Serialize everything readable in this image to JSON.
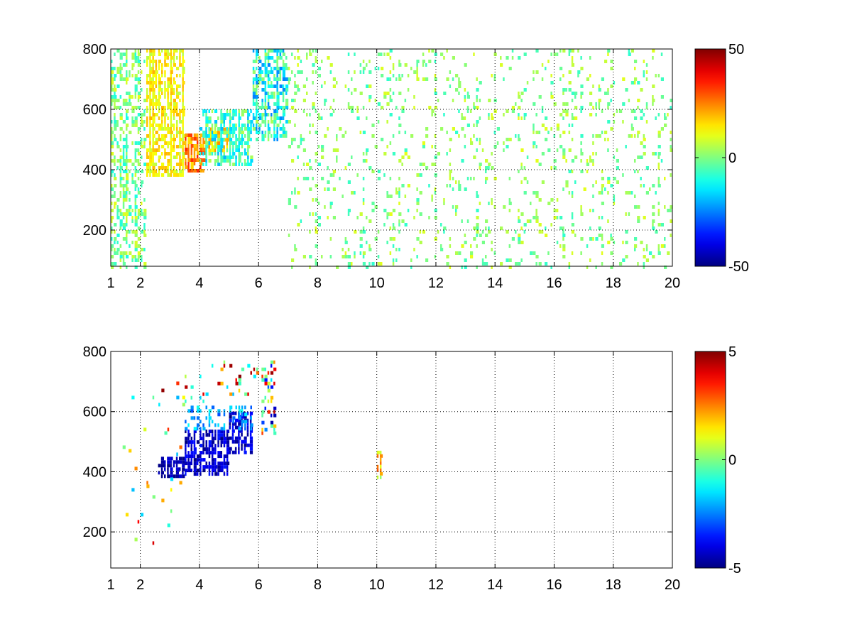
{
  "chart_data": [
    {
      "type": "heatmap",
      "title": "",
      "xlabel": "",
      "ylabel": "",
      "xlim": [
        1,
        20
      ],
      "ylim": [
        80,
        800
      ],
      "x_ticks": [
        1,
        2,
        4,
        6,
        8,
        10,
        12,
        14,
        16,
        18,
        20
      ],
      "y_ticks": [
        200,
        400,
        600,
        800
      ],
      "grid": "dotted",
      "colormap": "jet",
      "colorbar": {
        "min": -50,
        "max": 50,
        "tick_labels": [
          "50",
          "0",
          "-50"
        ]
      },
      "regions": [
        {
          "x": [
            1,
            2.2
          ],
          "y": [
            80,
            800
          ],
          "value_range": [
            -10,
            10
          ],
          "density": 0.35,
          "note": "sparse speckle"
        },
        {
          "x": [
            2.2,
            3.5
          ],
          "y": [
            380,
            800
          ],
          "value_range": [
            5,
            20
          ],
          "density": 0.7
        },
        {
          "x": [
            3.5,
            4.2
          ],
          "y": [
            400,
            520
          ],
          "value_range": [
            15,
            35
          ],
          "density": 0.8
        },
        {
          "x": [
            4.2,
            5.0
          ],
          "y": [
            460,
            540
          ],
          "value_range": [
            10,
            28
          ],
          "density": 0.7
        },
        {
          "x": [
            4.0,
            5.8
          ],
          "y": [
            420,
            600
          ],
          "value_range": [
            -20,
            5
          ],
          "density": 0.6
        },
        {
          "x": [
            5.8,
            7.0
          ],
          "y": [
            500,
            800
          ],
          "value_range": [
            -25,
            5
          ],
          "density": 0.5
        },
        {
          "x": [
            7.0,
            20
          ],
          "y": [
            80,
            800
          ],
          "value_range": [
            -8,
            10
          ],
          "density": 0.12,
          "note": "scattered columns"
        }
      ]
    },
    {
      "type": "heatmap",
      "title": "",
      "xlabel": "",
      "ylabel": "",
      "xlim": [
        1,
        20
      ],
      "ylim": [
        80,
        800
      ],
      "x_ticks": [
        1,
        2,
        4,
        6,
        8,
        10,
        12,
        14,
        16,
        18,
        20
      ],
      "y_ticks": [
        200,
        400,
        600,
        800
      ],
      "grid": "dotted",
      "colormap": "jet",
      "colorbar": {
        "min": -5,
        "max": 5,
        "tick_labels": [
          "5",
          "0",
          "-5"
        ]
      },
      "regions": [
        {
          "x": [
            2.6,
            3.5
          ],
          "y": [
            390,
            450
          ],
          "value_range": [
            -5,
            -4
          ],
          "density": 0.6
        },
        {
          "x": [
            3.5,
            5.0
          ],
          "y": [
            390,
            540
          ],
          "value_range": [
            -5,
            -3.5
          ],
          "density": 0.75
        },
        {
          "x": [
            5.0,
            5.8
          ],
          "y": [
            460,
            600
          ],
          "value_range": [
            -5,
            -3.5
          ],
          "density": 0.65
        },
        {
          "x": [
            3.5,
            5.8
          ],
          "y": [
            540,
            620
          ],
          "value_range": [
            -3,
            -1
          ],
          "density": 0.3
        },
        {
          "x": [
            6.1,
            6.6
          ],
          "y": [
            530,
            770
          ],
          "value_range": [
            -5,
            5
          ],
          "density": 0.4
        },
        {
          "x": [
            3.5,
            6.0
          ],
          "y": [
            640,
            770
          ],
          "value_range": [
            -2,
            5
          ],
          "density": 0.12
        },
        {
          "x": [
            10.0,
            10.2
          ],
          "y": [
            380,
            470
          ],
          "value_range": [
            0,
            3
          ],
          "density": 0.7
        },
        {
          "x": [
            1.3,
            3.5
          ],
          "y": [
            90,
            700
          ],
          "value_range": [
            -2,
            5
          ],
          "density": 0.03,
          "note": "isolated vertical streaks"
        }
      ]
    }
  ]
}
